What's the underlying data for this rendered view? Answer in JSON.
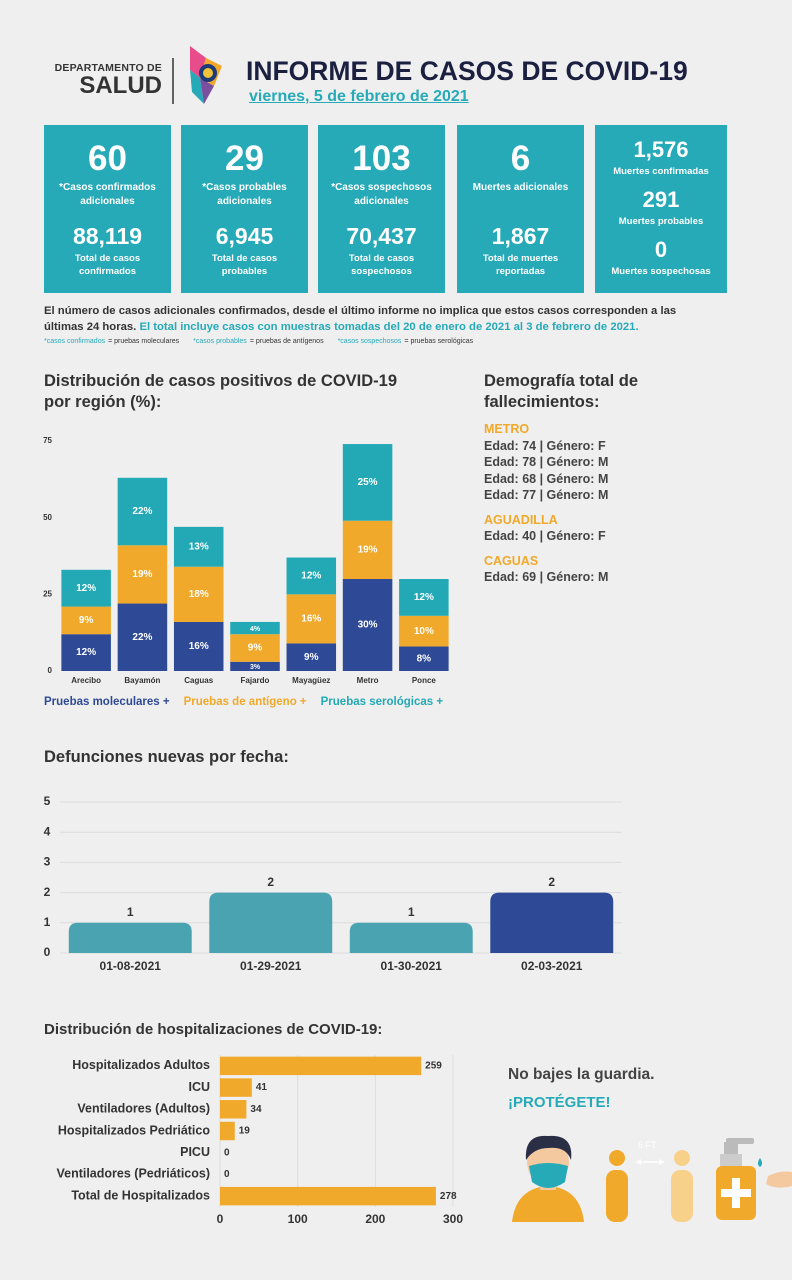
{
  "header": {
    "department": [
      "DEPARTAMENTO DE",
      "SALUD"
    ],
    "title": "INFORME DE CASOS DE COVID-19",
    "date": "viernes, 5 de febrero de 2021"
  },
  "summary_cards": [
    {
      "value": "60",
      "label": "*Casos confirmados adicionales",
      "total": "88,119",
      "total_label": "Total de casos confirmados"
    },
    {
      "value": "29",
      "label": "*Casos probables adicionales",
      "total": "6,945",
      "total_label": "Total de casos probables"
    },
    {
      "value": "103",
      "label": "*Casos sospechosos adicionales",
      "total": "70,437",
      "total_label": "Total de casos sospechosos"
    },
    {
      "value": "6",
      "label": "Muertes adicionales",
      "total": "1,867",
      "total_label": "Total de muertes reportadas"
    },
    {
      "items": [
        {
          "value": "1,576",
          "label": "Muertes confirmadas"
        },
        {
          "value": "291",
          "label": "Muertes probables"
        },
        {
          "value": "0",
          "label": "Muertes sospechosas"
        }
      ]
    }
  ],
  "notes": {
    "disclaimer": "El número de casos adicionales confirmados, desde el último informe no implica que estos casos corresponden a las últimas 24 horas.",
    "date_range": "El total incluye casos con muestras tomadas del 20 de enero de 2021 al 3 de febrero de 2021.",
    "definitions": [
      {
        "term": "*casos confirmados",
        "meaning": "= pruebas moleculares"
      },
      {
        "term": "*casos probables",
        "meaning": "= pruebas de antígenos"
      },
      {
        "term": "*casos sospechosos",
        "meaning": "= pruebas serológicas"
      }
    ]
  },
  "chart_data": [
    {
      "type": "stacked_bar",
      "title": "Distribución de casos positivos de COVID-19 por región (%):",
      "categories": [
        "Arecibo",
        "Bayamón",
        "Caguas",
        "Fajardo",
        "Mayagüez",
        "Metro",
        "Ponce"
      ],
      "series": [
        {
          "name": "Pruebas moleculares +",
          "color": "#2e4a97",
          "values": [
            12,
            22,
            16,
            3,
            9,
            30,
            8
          ],
          "value_labels": [
            "12%",
            "22%",
            "16%",
            "3%",
            "9%",
            "30%",
            "8%"
          ]
        },
        {
          "name": "Pruebas de antígeno +",
          "color": "#f0a92a",
          "values": [
            9,
            19,
            18,
            9,
            16,
            19,
            10
          ],
          "value_labels": [
            "9%",
            "19%",
            "18%",
            "9%",
            "16%",
            "19%",
            "10%"
          ]
        },
        {
          "name": "Pruebas serológicas +",
          "color": "#23a9b5",
          "values": [
            12,
            22,
            13,
            4,
            12,
            25,
            12
          ],
          "value_labels": [
            "12%",
            "22%",
            "13%",
            "4%",
            "12%",
            "25%",
            "12%"
          ]
        }
      ],
      "ylim": [
        0,
        75
      ],
      "yticks": [
        0,
        25,
        50,
        75
      ],
      "grid": false
    },
    {
      "type": "bar",
      "title": "Defunciones nuevas por fecha:",
      "categories": [
        "01-08-2021",
        "01-29-2021",
        "01-30-2021",
        "02-03-2021"
      ],
      "values": [
        1,
        2,
        1,
        2
      ],
      "colors": [
        "#4aa3b1",
        "#4aa3b1",
        "#4aa3b1",
        "#2e4a97"
      ],
      "ylim": [
        0,
        5
      ],
      "yticks": [
        0,
        1,
        2,
        3,
        4,
        5
      ],
      "grid": true
    },
    {
      "type": "barh",
      "title": "Distribución de hospitalizaciones de COVID-19:",
      "categories": [
        "Hospitalizados Adultos",
        "ICU",
        "Ventiladores (Adultos)",
        "Hospitalizados Pedriático",
        "PICU",
        "Ventiladores (Pedriáticos)",
        "Total de Hospitalizados"
      ],
      "values": [
        259,
        41,
        34,
        19,
        0,
        0,
        278
      ],
      "color": "#f0a92a",
      "xlim": [
        0,
        300
      ],
      "xticks": [
        0,
        100,
        200,
        300
      ],
      "grid": true
    }
  ],
  "demographics": {
    "title": "Demografía total de fallecimientos:",
    "regions": [
      {
        "name": "METRO",
        "entries": [
          "Edad: 74 | Género: F",
          "Edad: 78 | Género: M",
          "Edad: 68 | Género: M",
          "Edad: 77 | Género: M"
        ]
      },
      {
        "name": "AGUADILLA",
        "entries": [
          "Edad: 40 | Género: F"
        ]
      },
      {
        "name": "CAGUAS",
        "entries": [
          "Edad: 69 | Género: M"
        ]
      }
    ]
  },
  "prevention": {
    "message": "No bajes la guardia.",
    "call": "¡PROTÉGETE!",
    "distance": "6 FT"
  }
}
